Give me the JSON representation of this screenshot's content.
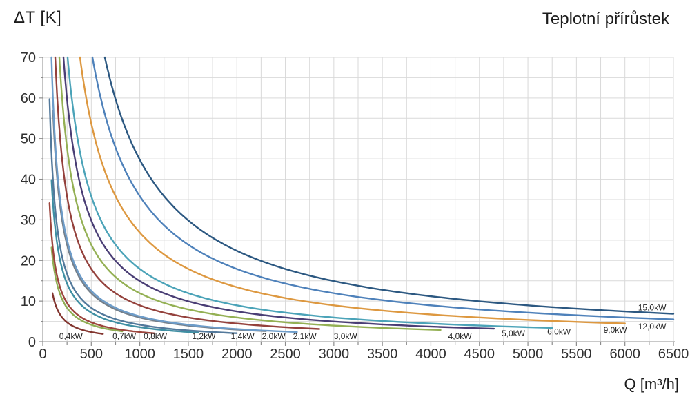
{
  "titles": {
    "y_axis": "ΔT [K]",
    "chart": "Teplotní přírůstek",
    "x_axis": "Q [m³/h]"
  },
  "style": {
    "background": "#ffffff",
    "grid_color": "#d9d9d9",
    "axis_color": "#a6a6a6",
    "tick_color": "#8c8c8c",
    "tick_label_color": "#303030",
    "series_label_color": "#262626",
    "title_color": "#1c1c1c"
  },
  "chart_data": {
    "type": "line",
    "title": "Teplotní přírůstek",
    "xlabel": "Q [m³/h]",
    "ylabel": "ΔT [K]",
    "xlim": [
      0,
      6500
    ],
    "ylim": [
      0,
      70
    ],
    "x_ticks": [
      0,
      500,
      1000,
      1500,
      2000,
      2500,
      3000,
      3500,
      4000,
      4500,
      5000,
      5500,
      6000,
      6500
    ],
    "y_ticks": [
      0,
      10,
      20,
      30,
      40,
      50,
      60,
      70
    ],
    "x_minor_step": 250,
    "y_minor_step": 5,
    "grid": true,
    "legend_position": "labels-at-curve-ends",
    "formula": "dT = k * P_kW / Q, clipped at dT = 70",
    "k": 2985,
    "series": [
      {
        "name": "0,4kW",
        "power_kw": 0.4,
        "color": "#82342e",
        "q_min": 100,
        "q_max": 620,
        "label_q": 290,
        "label_dt": 1.35
      },
      {
        "name": "0,7kW",
        "power_kw": 0.7,
        "color": "#8fae54",
        "q_min": 90,
        "q_max": 820,
        "label_q": 840,
        "label_dt": 1.35
      },
      {
        "name": "0,8kW",
        "power_kw": 0.8,
        "color": "#9c453d",
        "q_min": 70,
        "q_max": 1150,
        "label_q": 1160,
        "label_dt": 1.35
      },
      {
        "name": "1,2kW",
        "power_kw": 1.2,
        "color": "#3f8fa3",
        "q_min": 90,
        "q_max": 1600,
        "label_q": 1660,
        "label_dt": 1.35
      },
      {
        "name": "1,4kW",
        "power_kw": 1.4,
        "color": "#53799b",
        "q_min": 70,
        "q_max": 2000,
        "label_q": 2060,
        "label_dt": 1.35
      },
      {
        "name": "2,0kW",
        "power_kw": 2.0,
        "color": "#75808b",
        "q_min": 105,
        "q_max": 2300,
        "label_q": 2380,
        "label_dt": 1.35
      },
      {
        "name": "2,1kW",
        "power_kw": 2.1,
        "color": "#6d9cc9",
        "q_min": 80,
        "q_max": 2620,
        "label_q": 2700,
        "label_dt": 1.35
      },
      {
        "name": "3,0kW",
        "power_kw": 3.0,
        "color": "#94413c",
        "q_min": 60,
        "q_max": 2850,
        "label_q": 3120,
        "label_dt": 1.35
      },
      {
        "name": "4,0kW",
        "power_kw": 4.0,
        "color": "#94b054",
        "q_min": 60,
        "q_max": 4100,
        "label_q": 4300,
        "label_dt": 1.35
      },
      {
        "name": "5,0kW",
        "power_kw": 5.0,
        "color": "#4a3e75",
        "q_min": 60,
        "q_max": 4650,
        "label_q": 4850,
        "label_dt": 2.0
      },
      {
        "name": "6,0kW",
        "power_kw": 6.0,
        "color": "#4ba3b8",
        "q_min": 60,
        "q_max": 5250,
        "label_q": 5320,
        "label_dt": 2.5
      },
      {
        "name": "9,0kW",
        "power_kw": 9.0,
        "color": "#dd9840",
        "q_min": 60,
        "q_max": 6000,
        "label_q": 5900,
        "label_dt": 2.9
      },
      {
        "name": "12,0kW",
        "power_kw": 12.0,
        "color": "#4e81ba",
        "q_min": 60,
        "q_max": 6500,
        "label_q": 6280,
        "label_dt": 3.7
      },
      {
        "name": "15,0kW",
        "power_kw": 15.0,
        "color": "#2c5881",
        "q_min": 60,
        "q_max": 6500,
        "label_q": 6280,
        "label_dt": 8.4
      }
    ]
  }
}
